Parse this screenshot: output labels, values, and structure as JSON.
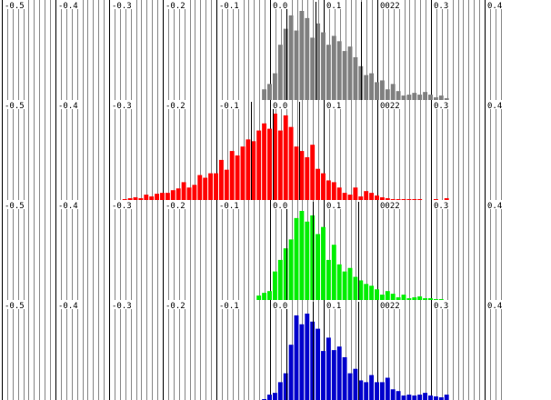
{
  "chart_data": {
    "type": "bar",
    "xlim": [
      -0.5,
      0.43
    ],
    "x_tick_labels": [
      "-0.5",
      "-0.4",
      "-0.3",
      "-0.2",
      "-0.1",
      "0.0",
      "0.1",
      "0.2",
      "0.3",
      "0.4"
    ],
    "extra_label": "0022",
    "extra_label_x": 0.2,
    "grid": true,
    "bin_width": 0.01,
    "panels": [
      {
        "color": "#808080",
        "mean_lines": [
          0.03,
          0.085,
          0.17
        ],
        "bins_start": -0.015,
        "heights": [
          0.12,
          0.18,
          0.3,
          0.62,
          0.8,
          0.95,
          0.78,
          1.0,
          0.92,
          0.7,
          0.86,
          0.76,
          0.62,
          0.72,
          0.66,
          0.55,
          0.6,
          0.48,
          0.38,
          0.28,
          0.3,
          0.2,
          0.22,
          0.12,
          0.18,
          0.1,
          0.05,
          0.06,
          0.08,
          0.06,
          0.09,
          0.06,
          0.03,
          0.05,
          0.02
        ]
      },
      {
        "color": "#ff0000",
        "mean_lines": [
          -0.035,
          0.005,
          0.055
        ],
        "bins_start": -0.275,
        "heights": [
          0.01,
          0.02,
          0.03,
          0.02,
          0.06,
          0.04,
          0.07,
          0.08,
          0.08,
          0.11,
          0.13,
          0.2,
          0.14,
          0.17,
          0.28,
          0.25,
          0.3,
          0.3,
          0.45,
          0.34,
          0.55,
          0.5,
          0.6,
          0.68,
          0.66,
          0.78,
          0.86,
          0.8,
          0.97,
          0.78,
          0.95,
          0.82,
          0.6,
          0.55,
          0.48,
          0.62,
          0.35,
          0.3,
          0.22,
          0.2,
          0.14,
          0.08,
          0.06,
          0.14,
          0.04,
          0.1,
          0.08,
          0.05,
          0.03,
          0.02,
          0.01,
          0.01,
          0.01,
          0.01,
          0.01,
          0.01,
          0.0,
          0.0,
          0.01,
          0.0,
          0.02
        ]
      },
      {
        "color": "#00ee00",
        "mean_lines": [
          0.03,
          0.08,
          0.165
        ],
        "bins_start": -0.025,
        "heights": [
          0.05,
          0.08,
          0.1,
          0.32,
          0.45,
          0.58,
          0.68,
          0.92,
          1.0,
          0.88,
          0.95,
          0.74,
          0.82,
          0.45,
          0.62,
          0.4,
          0.32,
          0.36,
          0.26,
          0.22,
          0.18,
          0.16,
          0.12,
          0.06,
          0.1,
          0.07,
          0.03,
          0.06,
          0.02,
          0.03,
          0.04,
          0.02,
          0.02,
          0.01,
          0.01
        ]
      },
      {
        "color": "#0000cc",
        "mean_lines": [
          0.03,
          0.08,
          0.165
        ],
        "bins_start": -0.015,
        "heights": [
          0.01,
          0.06,
          0.08,
          0.2,
          0.3,
          0.62,
          0.95,
          0.85,
          0.97,
          0.88,
          0.8,
          0.55,
          0.7,
          0.56,
          0.6,
          0.48,
          0.3,
          0.35,
          0.22,
          0.2,
          0.28,
          0.2,
          0.2,
          0.25,
          0.12,
          0.1,
          0.05,
          0.06,
          0.05,
          0.06,
          0.08,
          0.05,
          0.04,
          0.03,
          0.06
        ]
      }
    ]
  }
}
